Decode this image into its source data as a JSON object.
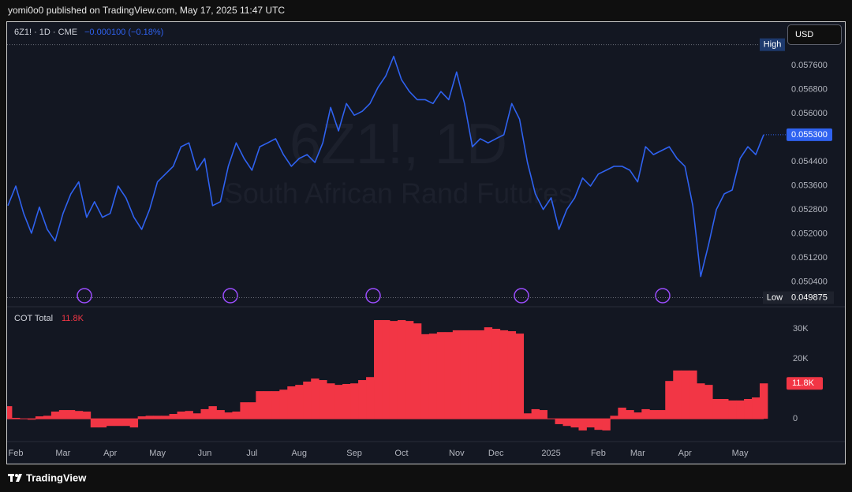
{
  "header": {
    "publisher_line": "yomi0o0 published on TradingView.com, May 17, 2025 11:47 UTC"
  },
  "toolbar": {
    "currency": "USD"
  },
  "footer": {
    "brand": "TradingView"
  },
  "chart_data": [
    {
      "type": "line",
      "legend": "6Z1! · 1D · CME",
      "change_label": "−0.000100 (−0.18%)",
      "watermark_title": "6Z1!, 1D",
      "watermark_subtitle": "South African Rand Futures",
      "color": "#2f62f0",
      "values": [
        0.05294,
        0.05359,
        0.05268,
        0.05202,
        0.05289,
        0.05215,
        0.05176,
        0.05268,
        0.05333,
        0.05373,
        0.05255,
        0.05307,
        0.05255,
        0.05268,
        0.05359,
        0.0532,
        0.05255,
        0.05215,
        0.05281,
        0.05373,
        0.05399,
        0.05425,
        0.0549,
        0.05503,
        0.05412,
        0.05451,
        0.05294,
        0.05307,
        0.05425,
        0.05503,
        0.05451,
        0.05412,
        0.0549,
        0.05503,
        0.05517,
        0.05464,
        0.05425,
        0.05451,
        0.05464,
        0.05438,
        0.05503,
        0.05621,
        0.05543,
        0.05634,
        0.05595,
        0.05608,
        0.05634,
        0.05687,
        0.05726,
        0.05791,
        0.05713,
        0.05674,
        0.05647,
        0.05647,
        0.05634,
        0.05674,
        0.05647,
        0.05739,
        0.05634,
        0.0549,
        0.05517,
        0.05503,
        0.05517,
        0.0553,
        0.05634,
        0.05582,
        0.05438,
        0.05333,
        0.05281,
        0.0532,
        0.05215,
        0.05281,
        0.0532,
        0.05386,
        0.05359,
        0.05399,
        0.05412,
        0.05425,
        0.05425,
        0.05412,
        0.05373,
        0.0549,
        0.05464,
        0.05477,
        0.0549,
        0.05451,
        0.05425,
        0.05294,
        0.05058,
        0.05163,
        0.05281,
        0.05333,
        0.05346,
        0.05451,
        0.0549,
        0.05464,
        0.0553
      ],
      "ylim": [
        0.0496,
        0.059
      ],
      "yticks": [
        {
          "value": 0.0576,
          "label": "0.057600"
        },
        {
          "value": 0.0568,
          "label": "0.056800"
        },
        {
          "value": 0.056,
          "label": "0.056000"
        },
        {
          "value": 0.0544,
          "label": "0.054400"
        },
        {
          "value": 0.0536,
          "label": "0.053600"
        },
        {
          "value": 0.0528,
          "label": "0.052800"
        },
        {
          "value": 0.052,
          "label": "0.052000"
        },
        {
          "value": 0.0512,
          "label": "0.051200"
        },
        {
          "value": 0.0504,
          "label": "0.050400"
        }
      ],
      "grid": false,
      "last_price": {
        "value": 0.0553,
        "label": "0.055300"
      },
      "high_tag": "High",
      "high": 0.0583,
      "low_tag": "Low",
      "low": {
        "value": 0.049875,
        "label": "0.049875"
      }
    },
    {
      "type": "step-area",
      "legend": "COT Total",
      "color": "#f23645",
      "categories": [
        null,
        "Feb",
        null,
        null,
        null,
        null,
        null,
        "Mar",
        null,
        null,
        null,
        null,
        null,
        "Apr",
        null,
        null,
        null,
        null,
        null,
        "May",
        null,
        null,
        null,
        null,
        null,
        "Jun",
        null,
        null,
        null,
        null,
        null,
        "Jul",
        null,
        null,
        null,
        null,
        null,
        "Aug",
        null,
        null,
        null,
        null,
        null,
        null,
        "Sep",
        null,
        null,
        null,
        null,
        null,
        "Oct",
        null,
        null,
        null,
        null,
        null,
        null,
        "Nov",
        null,
        null,
        null,
        null,
        "Dec",
        null,
        null,
        null,
        null,
        null,
        null,
        "2025",
        null,
        null,
        null,
        null,
        null,
        "Feb",
        null,
        null,
        null,
        null,
        "Mar",
        null,
        null,
        null,
        null,
        null,
        "Apr",
        null,
        null,
        null,
        null,
        null,
        null,
        "May",
        null,
        null,
        null
      ],
      "values": [
        4200,
        300,
        0,
        -300,
        800,
        1000,
        2400,
        2900,
        2900,
        2600,
        2400,
        -2900,
        -2900,
        -2400,
        -2400,
        -2400,
        -2900,
        800,
        1000,
        1000,
        1000,
        1600,
        2400,
        2600,
        1800,
        3200,
        4200,
        2900,
        2100,
        2400,
        5500,
        5500,
        9200,
        9200,
        9200,
        9700,
        10800,
        11300,
        12400,
        13400,
        12900,
        11800,
        11300,
        11600,
        11800,
        12900,
        13900,
        32900,
        32900,
        32600,
        32900,
        32600,
        31800,
        28200,
        28400,
        28900,
        28900,
        29500,
        29500,
        29500,
        29500,
        30500,
        30000,
        29500,
        29200,
        28400,
        1800,
        3200,
        2900,
        0,
        -1800,
        -2400,
        -2900,
        -3900,
        -2900,
        -3700,
        -3900,
        1000,
        3700,
        2900,
        2100,
        3200,
        2900,
        2900,
        12600,
        16100,
        16100,
        16100,
        11800,
        11300,
        6600,
        6600,
        6100,
        6100,
        6600,
        7100,
        11800
      ],
      "ylim": [
        -7600,
        37100
      ],
      "yticks": [
        0,
        {
          "value": 20000,
          "label": "20K"
        },
        {
          "value": 30000,
          "label": "30K"
        }
      ],
      "last_value": {
        "value": 11800,
        "label": "11.8K"
      }
    }
  ]
}
